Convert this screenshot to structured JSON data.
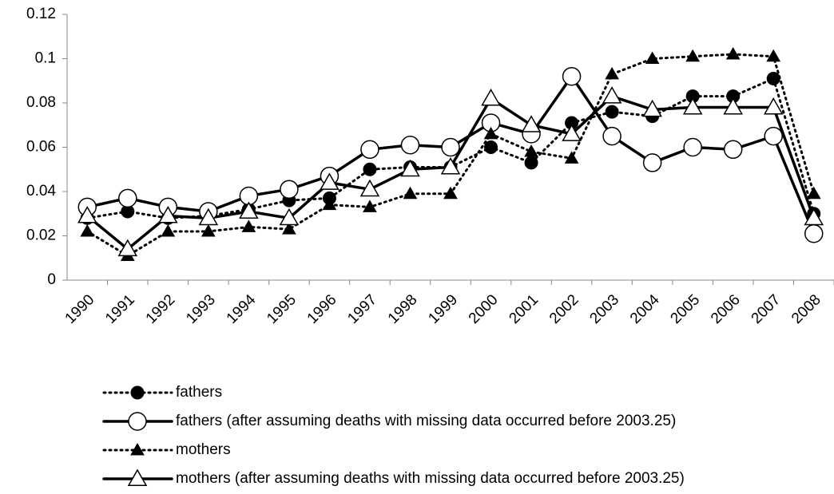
{
  "chart_data": {
    "type": "line",
    "categories": [
      "1990",
      "1991",
      "1992",
      "1993",
      "1994",
      "1995",
      "1996",
      "1997",
      "1998",
      "1999",
      "2000",
      "2001",
      "2002",
      "2003",
      "2004",
      "2005",
      "2006",
      "2007",
      "2008"
    ],
    "ylim": [
      0,
      0.12
    ],
    "yticks": [
      0,
      0.02,
      0.04,
      0.06,
      0.08,
      0.1,
      0.12
    ],
    "legend": "bottom",
    "series": [
      {
        "name": "fathers",
        "color": "#000000",
        "line_style": "dotted",
        "marker": "filled-circle",
        "values": [
          0.028,
          0.031,
          0.028,
          0.029,
          0.032,
          0.036,
          0.037,
          0.05,
          0.051,
          0.051,
          0.06,
          0.053,
          0.071,
          0.076,
          0.074,
          0.083,
          0.083,
          0.091,
          0.03
        ]
      },
      {
        "name": "fathers (after assuming deaths with missing data occurred before 2003.25)",
        "color": "#000000",
        "line_style": "solid",
        "marker": "open-circle",
        "values": [
          0.033,
          0.037,
          0.033,
          0.031,
          0.038,
          0.041,
          0.047,
          0.059,
          0.061,
          0.06,
          0.071,
          0.066,
          0.092,
          0.065,
          0.053,
          0.06,
          0.059,
          0.065,
          0.021
        ]
      },
      {
        "name": "mothers",
        "color": "#000000",
        "line_style": "dotted",
        "marker": "filled-triangle",
        "values": [
          0.022,
          0.011,
          0.022,
          0.022,
          0.024,
          0.023,
          0.034,
          0.033,
          0.039,
          0.039,
          0.066,
          0.058,
          0.055,
          0.093,
          0.1,
          0.101,
          0.102,
          0.101,
          0.039
        ]
      },
      {
        "name": "mothers (after assuming deaths with missing data occurred before 2003.25)",
        "color": "#000000",
        "line_style": "solid",
        "marker": "open-triangle",
        "values": [
          0.029,
          0.014,
          0.029,
          0.028,
          0.031,
          0.028,
          0.044,
          0.041,
          0.05,
          0.051,
          0.082,
          0.07,
          0.066,
          0.083,
          0.077,
          0.078,
          0.078,
          0.078,
          0.028
        ]
      }
    ]
  }
}
